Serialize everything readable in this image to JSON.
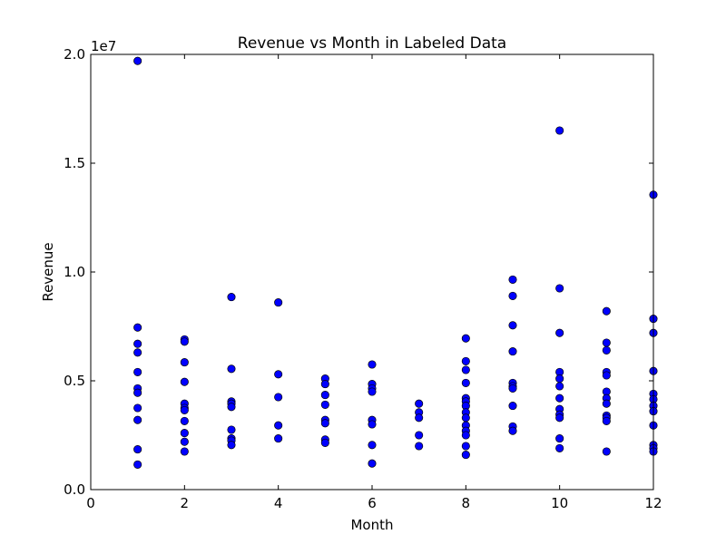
{
  "chart_data": {
    "type": "scatter",
    "title": "Revenue vs Month in Labeled Data",
    "xlabel": "Month",
    "ylabel": "Revenue",
    "xlim": [
      0,
      12
    ],
    "ylim": [
      0,
      20000000
    ],
    "x_ticks": [
      0,
      2,
      4,
      6,
      8,
      10,
      12
    ],
    "x_tick_labels": [
      "0",
      "2",
      "4",
      "6",
      "8",
      "10",
      "12"
    ],
    "y_ticks": [
      0,
      5000000,
      10000000,
      15000000,
      20000000
    ],
    "y_tick_labels": [
      "0.0",
      "0.5",
      "1.0",
      "1.5",
      "2.0"
    ],
    "y_offset_label": "1e7",
    "grid": false,
    "marker_color": "#0000ff",
    "marker_edge_color": "#000000",
    "points": [
      {
        "x": 1,
        "y": 19700000
      },
      {
        "x": 1,
        "y": 7450000
      },
      {
        "x": 1,
        "y": 6700000
      },
      {
        "x": 1,
        "y": 6300000
      },
      {
        "x": 1,
        "y": 5400000
      },
      {
        "x": 1,
        "y": 4650000
      },
      {
        "x": 1,
        "y": 4450000
      },
      {
        "x": 1,
        "y": 3750000
      },
      {
        "x": 1,
        "y": 3200000
      },
      {
        "x": 1,
        "y": 1850000
      },
      {
        "x": 1,
        "y": 1150000
      },
      {
        "x": 2,
        "y": 6900000
      },
      {
        "x": 2,
        "y": 6800000
      },
      {
        "x": 2,
        "y": 5850000
      },
      {
        "x": 2,
        "y": 4950000
      },
      {
        "x": 2,
        "y": 3950000
      },
      {
        "x": 2,
        "y": 3750000
      },
      {
        "x": 2,
        "y": 3650000
      },
      {
        "x": 2,
        "y": 3150000
      },
      {
        "x": 2,
        "y": 2600000
      },
      {
        "x": 2,
        "y": 2200000
      },
      {
        "x": 2,
        "y": 1750000
      },
      {
        "x": 3,
        "y": 8850000
      },
      {
        "x": 3,
        "y": 5550000
      },
      {
        "x": 3,
        "y": 4050000
      },
      {
        "x": 3,
        "y": 3950000
      },
      {
        "x": 3,
        "y": 3800000
      },
      {
        "x": 3,
        "y": 2750000
      },
      {
        "x": 3,
        "y": 2350000
      },
      {
        "x": 3,
        "y": 2250000
      },
      {
        "x": 3,
        "y": 2050000
      },
      {
        "x": 4,
        "y": 8600000
      },
      {
        "x": 4,
        "y": 5300000
      },
      {
        "x": 4,
        "y": 4250000
      },
      {
        "x": 4,
        "y": 2950000
      },
      {
        "x": 4,
        "y": 2350000
      },
      {
        "x": 5,
        "y": 5100000
      },
      {
        "x": 5,
        "y": 4850000
      },
      {
        "x": 5,
        "y": 4350000
      },
      {
        "x": 5,
        "y": 3900000
      },
      {
        "x": 5,
        "y": 3200000
      },
      {
        "x": 5,
        "y": 3050000
      },
      {
        "x": 5,
        "y": 2300000
      },
      {
        "x": 5,
        "y": 2150000
      },
      {
        "x": 6,
        "y": 5750000
      },
      {
        "x": 6,
        "y": 4850000
      },
      {
        "x": 6,
        "y": 4650000
      },
      {
        "x": 6,
        "y": 4500000
      },
      {
        "x": 6,
        "y": 3200000
      },
      {
        "x": 6,
        "y": 3000000
      },
      {
        "x": 6,
        "y": 2050000
      },
      {
        "x": 6,
        "y": 1200000
      },
      {
        "x": 7,
        "y": 3950000
      },
      {
        "x": 7,
        "y": 3550000
      },
      {
        "x": 7,
        "y": 3300000
      },
      {
        "x": 7,
        "y": 2500000
      },
      {
        "x": 7,
        "y": 2000000
      },
      {
        "x": 8,
        "y": 6950000
      },
      {
        "x": 8,
        "y": 5900000
      },
      {
        "x": 8,
        "y": 5500000
      },
      {
        "x": 8,
        "y": 4900000
      },
      {
        "x": 8,
        "y": 4200000
      },
      {
        "x": 8,
        "y": 4050000
      },
      {
        "x": 8,
        "y": 3850000
      },
      {
        "x": 8,
        "y": 3550000
      },
      {
        "x": 8,
        "y": 3300000
      },
      {
        "x": 8,
        "y": 2950000
      },
      {
        "x": 8,
        "y": 2700000
      },
      {
        "x": 8,
        "y": 2500000
      },
      {
        "x": 8,
        "y": 2000000
      },
      {
        "x": 8,
        "y": 1600000
      },
      {
        "x": 9,
        "y": 9650000
      },
      {
        "x": 9,
        "y": 8900000
      },
      {
        "x": 9,
        "y": 7550000
      },
      {
        "x": 9,
        "y": 6350000
      },
      {
        "x": 9,
        "y": 4900000
      },
      {
        "x": 9,
        "y": 4750000
      },
      {
        "x": 9,
        "y": 4650000
      },
      {
        "x": 9,
        "y": 3850000
      },
      {
        "x": 9,
        "y": 2900000
      },
      {
        "x": 9,
        "y": 2700000
      },
      {
        "x": 10,
        "y": 16500000
      },
      {
        "x": 10,
        "y": 9250000
      },
      {
        "x": 10,
        "y": 7200000
      },
      {
        "x": 10,
        "y": 5400000
      },
      {
        "x": 10,
        "y": 5100000
      },
      {
        "x": 10,
        "y": 4750000
      },
      {
        "x": 10,
        "y": 4200000
      },
      {
        "x": 10,
        "y": 3700000
      },
      {
        "x": 10,
        "y": 3450000
      },
      {
        "x": 10,
        "y": 3300000
      },
      {
        "x": 10,
        "y": 2350000
      },
      {
        "x": 10,
        "y": 1900000
      },
      {
        "x": 11,
        "y": 8200000
      },
      {
        "x": 11,
        "y": 6750000
      },
      {
        "x": 11,
        "y": 6400000
      },
      {
        "x": 11,
        "y": 5400000
      },
      {
        "x": 11,
        "y": 5250000
      },
      {
        "x": 11,
        "y": 4500000
      },
      {
        "x": 11,
        "y": 4200000
      },
      {
        "x": 11,
        "y": 3950000
      },
      {
        "x": 11,
        "y": 3400000
      },
      {
        "x": 11,
        "y": 3300000
      },
      {
        "x": 11,
        "y": 3150000
      },
      {
        "x": 11,
        "y": 1750000
      },
      {
        "x": 12,
        "y": 13550000
      },
      {
        "x": 12,
        "y": 7850000
      },
      {
        "x": 12,
        "y": 7200000
      },
      {
        "x": 12,
        "y": 5450000
      },
      {
        "x": 12,
        "y": 4400000
      },
      {
        "x": 12,
        "y": 4150000
      },
      {
        "x": 12,
        "y": 3850000
      },
      {
        "x": 12,
        "y": 3600000
      },
      {
        "x": 12,
        "y": 2950000
      },
      {
        "x": 12,
        "y": 2050000
      },
      {
        "x": 12,
        "y": 1900000
      },
      {
        "x": 12,
        "y": 1750000
      }
    ]
  }
}
